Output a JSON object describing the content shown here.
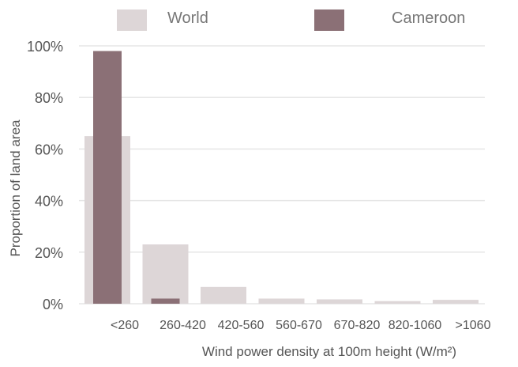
{
  "chart_data": {
    "type": "bar",
    "categories": [
      "<260",
      "260-420",
      "420-560",
      "560-670",
      "670-820",
      "820-1060",
      ">1060"
    ],
    "series": [
      {
        "name": "World",
        "values": [
          65,
          23,
          6.5,
          2,
          1.7,
          1,
          1.5
        ],
        "color": "#ddd6d7"
      },
      {
        "name": "Cameroon",
        "values": [
          98,
          2,
          0,
          0,
          0,
          0,
          0
        ],
        "color": "#8b7076"
      }
    ],
    "ylim": [
      0,
      100
    ],
    "yticks": [
      "0%",
      "20%",
      "40%",
      "60%",
      "80%",
      "100%"
    ],
    "ytick_values": [
      0,
      20,
      40,
      60,
      80,
      100
    ],
    "ylabel": "Proportion of land area",
    "xlabel": "Wind power density at 100m height (W/m²)",
    "legend_position": "top",
    "grid": "horizontal",
    "grid_color": "#e6e6e6",
    "text_color": "#555555"
  }
}
